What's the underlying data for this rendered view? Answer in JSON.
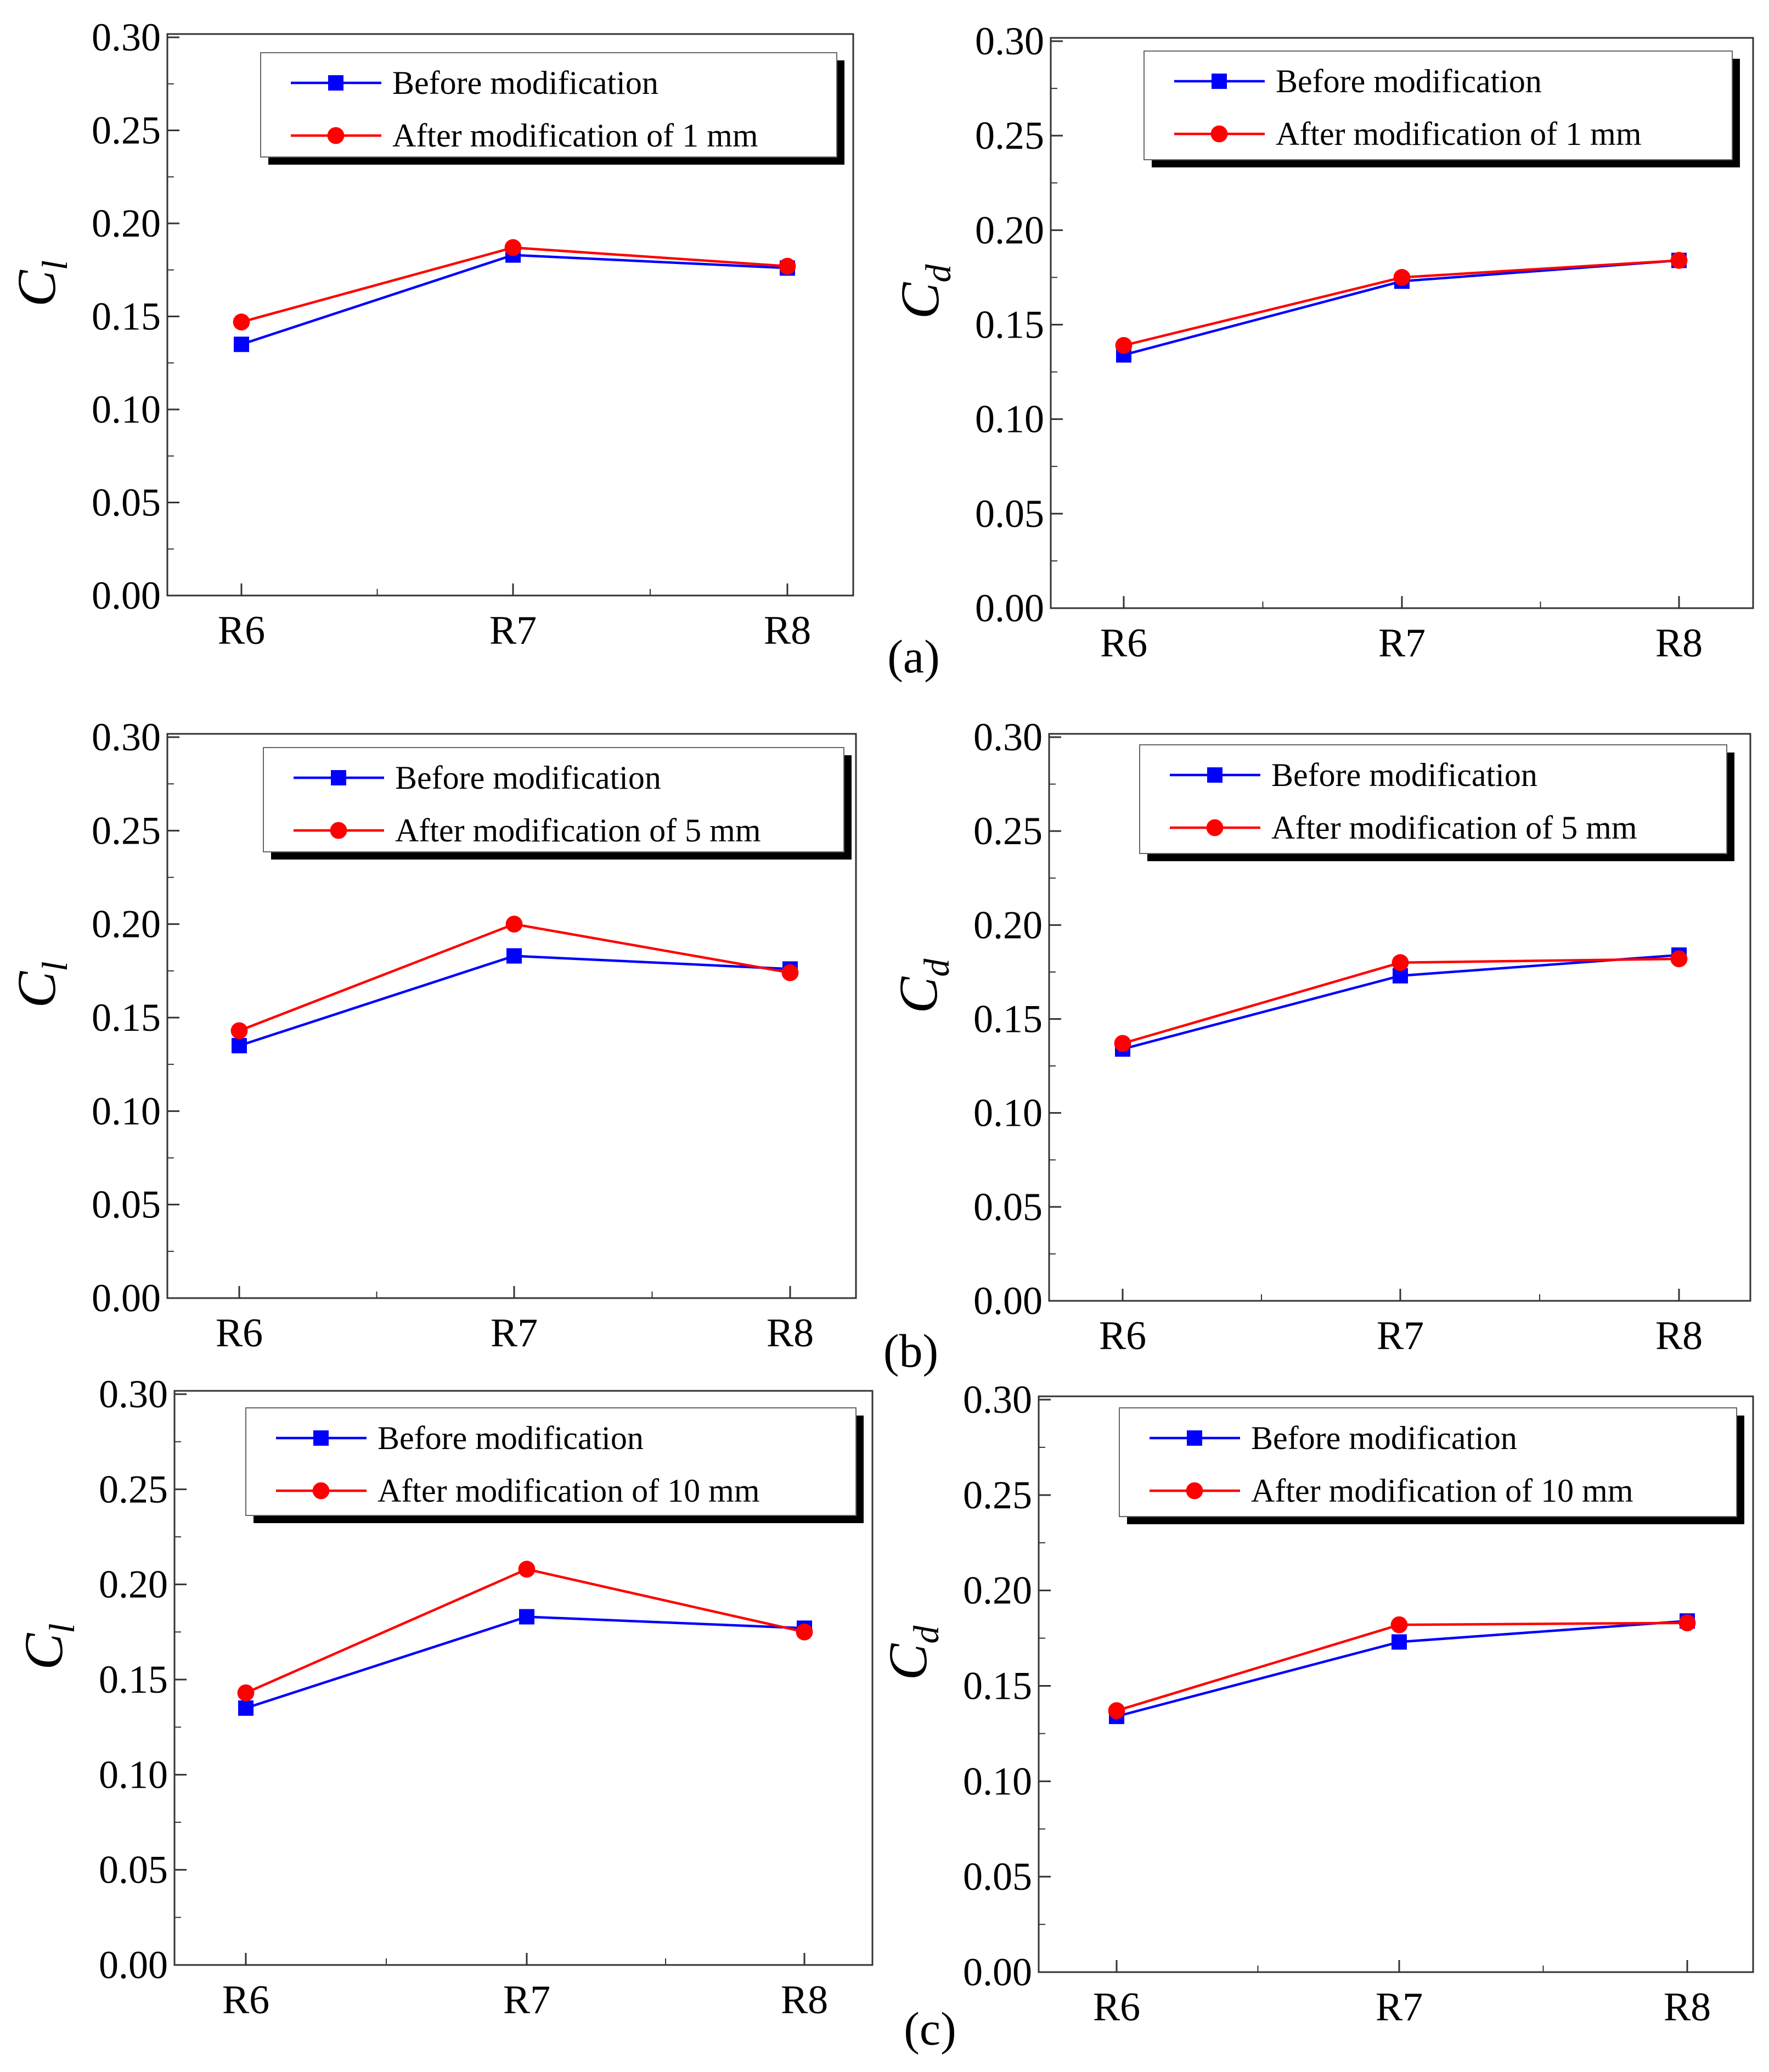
{
  "chart_data": [
    {
      "id": "a-left",
      "type": "line",
      "ylabel_main": "C",
      "ylabel_sub": "l",
      "categories": [
        "R6",
        "R7",
        "R8"
      ],
      "ylim": [
        0,
        0.3
      ],
      "yticks": [
        "0.00",
        "0.05",
        "0.10",
        "0.15",
        "0.20",
        "0.25",
        "0.30"
      ],
      "series": [
        {
          "name": "Before modification",
          "color": "#0000ff",
          "marker": "square",
          "values": [
            0.135,
            0.183,
            0.176
          ]
        },
        {
          "name": "After modification of 1 mm",
          "color": "#ff0000",
          "marker": "circle",
          "values": [
            0.147,
            0.187,
            0.177
          ]
        }
      ]
    },
    {
      "id": "a-right",
      "type": "line",
      "ylabel_main": "C",
      "ylabel_sub": "d",
      "categories": [
        "R6",
        "R7",
        "R8"
      ],
      "ylim": [
        0,
        0.3
      ],
      "yticks": [
        "0.00",
        "0.05",
        "0.10",
        "0.15",
        "0.20",
        "0.25",
        "0.30"
      ],
      "series": [
        {
          "name": "Before modification",
          "color": "#0000ff",
          "marker": "square",
          "values": [
            0.134,
            0.173,
            0.184
          ]
        },
        {
          "name": "After modification of 1 mm",
          "color": "#ff0000",
          "marker": "circle",
          "values": [
            0.139,
            0.175,
            0.184
          ]
        }
      ]
    },
    {
      "id": "b-left",
      "type": "line",
      "ylabel_main": "C",
      "ylabel_sub": "l",
      "categories": [
        "R6",
        "R7",
        "R8"
      ],
      "ylim": [
        0,
        0.3
      ],
      "yticks": [
        "0.00",
        "0.05",
        "0.10",
        "0.15",
        "0.20",
        "0.25",
        "0.30"
      ],
      "series": [
        {
          "name": "Before modification",
          "color": "#0000ff",
          "marker": "square",
          "values": [
            0.135,
            0.183,
            0.176
          ]
        },
        {
          "name": "After modification of 5 mm",
          "color": "#ff0000",
          "marker": "circle",
          "values": [
            0.143,
            0.2,
            0.174
          ]
        }
      ]
    },
    {
      "id": "b-right",
      "type": "line",
      "ylabel_main": "C",
      "ylabel_sub": "d",
      "categories": [
        "R6",
        "R7",
        "R8"
      ],
      "ylim": [
        0,
        0.3
      ],
      "yticks": [
        "0.00",
        "0.05",
        "0.10",
        "0.15",
        "0.20",
        "0.25",
        "0.30"
      ],
      "series": [
        {
          "name": "Before modification",
          "color": "#0000ff",
          "marker": "square",
          "values": [
            0.134,
            0.173,
            0.184
          ]
        },
        {
          "name": "After modification of 5 mm",
          "color": "#ff0000",
          "marker": "circle",
          "values": [
            0.137,
            0.18,
            0.182
          ]
        }
      ]
    },
    {
      "id": "c-left",
      "type": "line",
      "ylabel_main": "C",
      "ylabel_sub": "l",
      "categories": [
        "R6",
        "R7",
        "R8"
      ],
      "ylim": [
        0,
        0.3
      ],
      "yticks": [
        "0.00",
        "0.05",
        "0.10",
        "0.15",
        "0.20",
        "0.25",
        "0.30"
      ],
      "series": [
        {
          "name": "Before modification",
          "color": "#0000ff",
          "marker": "square",
          "values": [
            0.135,
            0.183,
            0.177
          ]
        },
        {
          "name": "After modification of 10 mm",
          "color": "#ff0000",
          "marker": "circle",
          "values": [
            0.143,
            0.208,
            0.175
          ]
        }
      ]
    },
    {
      "id": "c-right",
      "type": "line",
      "ylabel_main": "C",
      "ylabel_sub": "d",
      "categories": [
        "R6",
        "R7",
        "R8"
      ],
      "ylim": [
        0,
        0.3
      ],
      "yticks": [
        "0.00",
        "0.05",
        "0.10",
        "0.15",
        "0.20",
        "0.25",
        "0.30"
      ],
      "series": [
        {
          "name": "Before modification",
          "color": "#0000ff",
          "marker": "square",
          "values": [
            0.134,
            0.173,
            0.184
          ]
        },
        {
          "name": "After modification of 10 mm",
          "color": "#ff0000",
          "marker": "circle",
          "values": [
            0.137,
            0.182,
            0.183
          ]
        }
      ]
    }
  ],
  "panel_labels": [
    "(a)",
    "(b)",
    "(c)"
  ]
}
